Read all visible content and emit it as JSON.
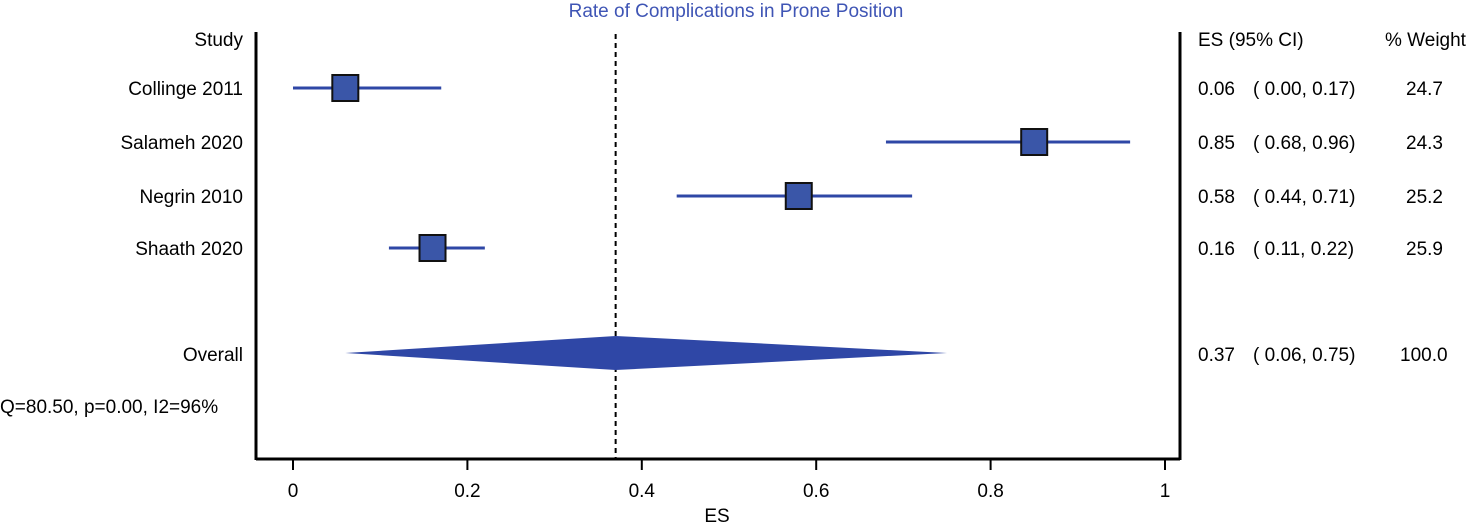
{
  "chart_data": {
    "type": "forest",
    "title": "Rate of Complications in Prone Position",
    "xlabel": "ES",
    "xlim": [
      0,
      1
    ],
    "xticks": [
      "0",
      "0.2",
      "0.4",
      "0.6",
      "0.8",
      "1"
    ],
    "xtick_values": [
      0,
      0.2,
      0.4,
      0.6,
      0.8,
      1
    ],
    "reference_line": 0.37,
    "headers": {
      "study": "Study",
      "es_ci": "ES (95% CI)",
      "weight": "% Weight"
    },
    "studies": [
      {
        "name": "Collinge 2011",
        "es": 0.06,
        "lo": 0.0,
        "hi": 0.17,
        "es_text": "0.06",
        "ci_text": "( 0.00, 0.17)",
        "weight": "24.7"
      },
      {
        "name": "Salameh 2020",
        "es": 0.85,
        "lo": 0.68,
        "hi": 0.96,
        "es_text": "0.85",
        "ci_text": "( 0.68, 0.96)",
        "weight": "24.3"
      },
      {
        "name": "Negrin 2010",
        "es": 0.58,
        "lo": 0.44,
        "hi": 0.71,
        "es_text": "0.58",
        "ci_text": "( 0.44, 0.71)",
        "weight": "25.2"
      },
      {
        "name": "Shaath 2020",
        "es": 0.16,
        "lo": 0.11,
        "hi": 0.22,
        "es_text": "0.16",
        "ci_text": "( 0.11, 0.22)",
        "weight": "25.9"
      }
    ],
    "overall": {
      "name": "Overall",
      "es": 0.37,
      "lo": 0.06,
      "hi": 0.75,
      "es_text": "0.37",
      "ci_text": "( 0.06, 0.75)",
      "weight": "100.0"
    },
    "heterogeneity": "Q=80.50, p=0.00, I2=96%",
    "colors": {
      "marker": "#3a56a8",
      "line": "#2f47a6",
      "title": "#3f55b5",
      "axis": "#000000"
    }
  }
}
